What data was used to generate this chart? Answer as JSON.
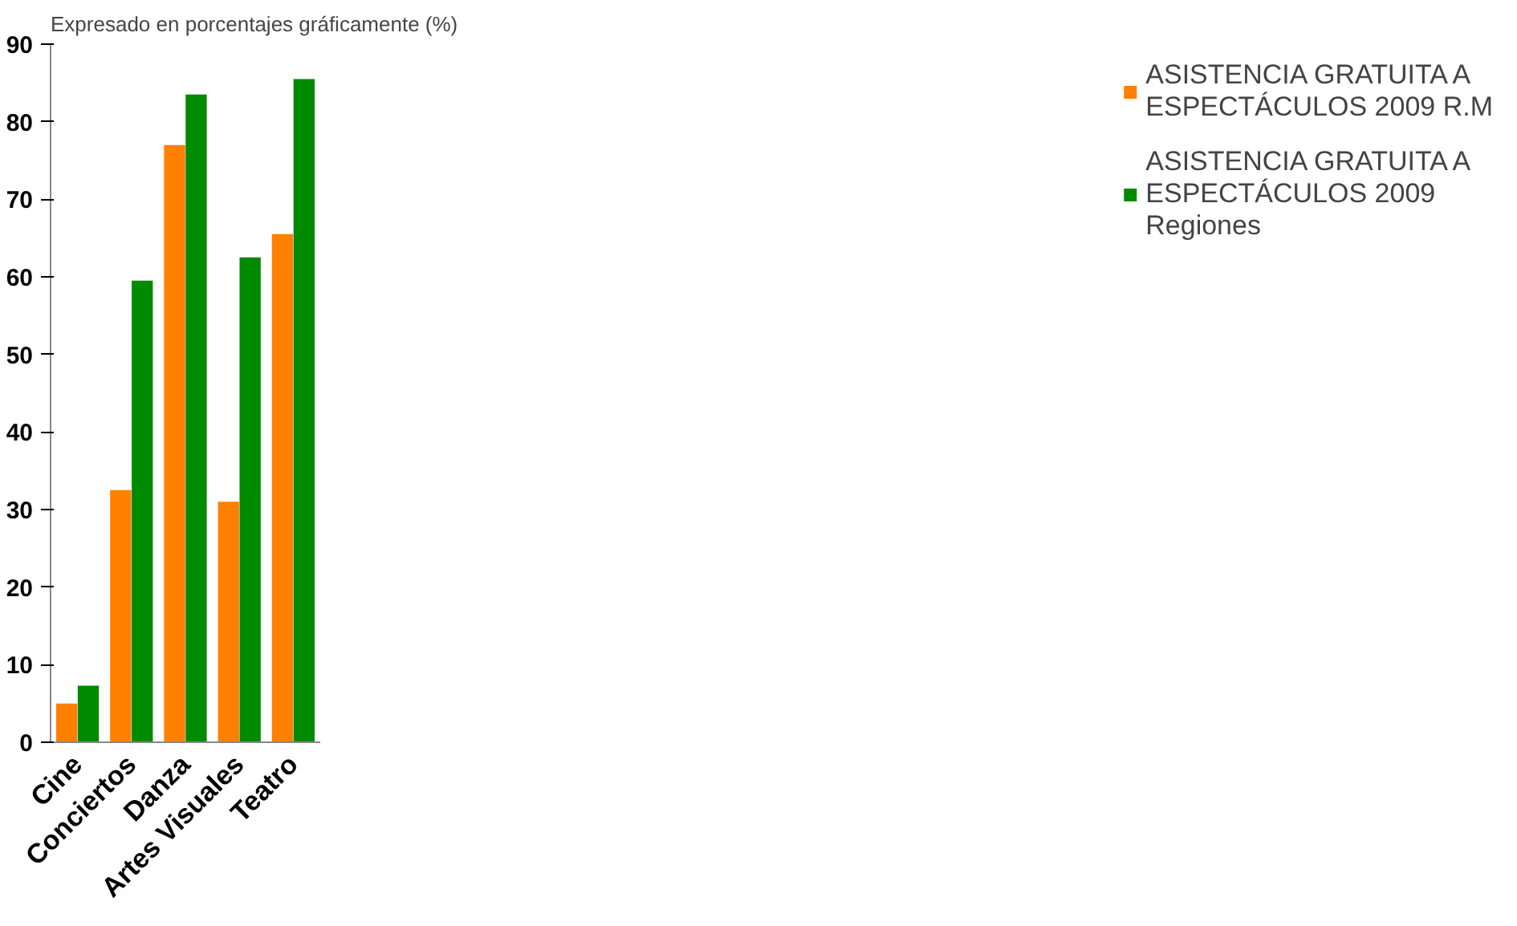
{
  "chart_data": {
    "type": "bar",
    "title": "Expresado en porcentajes gráficamente (%)",
    "categories": [
      "Cine",
      "Conciertos",
      "Danza",
      "Artes Visuales",
      "Teatro"
    ],
    "series": [
      {
        "name": "ASISTENCIA GRATUITA A ESPECTÁCULOS 2009 R.M",
        "color": "#ff7f00",
        "values": [
          5,
          32.5,
          77,
          31,
          65.5
        ]
      },
      {
        "name": "ASISTENCIA GRATUITA A ESPECTÁCULOS 2009 Regiones",
        "color": "#008a00",
        "values": [
          7.3,
          59.5,
          83.5,
          62.5,
          85.5
        ]
      }
    ],
    "ylim": [
      0,
      90
    ],
    "yticks": [
      0,
      10,
      20,
      30,
      40,
      50,
      60,
      70,
      80,
      90
    ],
    "grid": false,
    "legend": "right"
  }
}
